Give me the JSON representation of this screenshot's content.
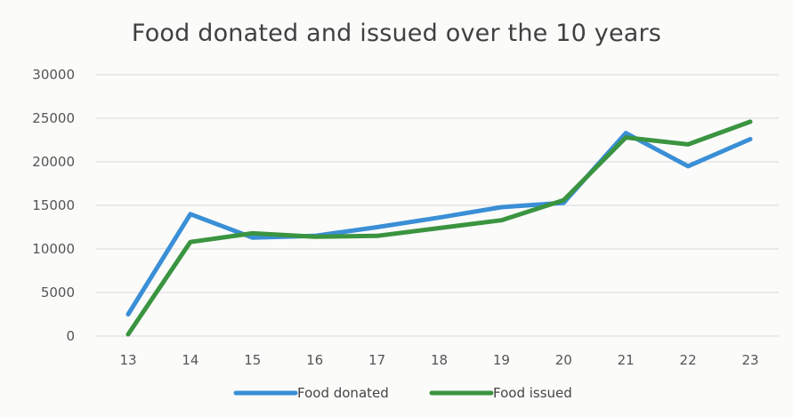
{
  "chart_data": {
    "type": "line",
    "title": "Food donated and issued over the 10 years",
    "xlabel": "",
    "ylabel": "",
    "categories": [
      "13",
      "14",
      "15",
      "16",
      "17",
      "18",
      "19",
      "20",
      "21",
      "22",
      "23"
    ],
    "ylim": [
      0,
      30000
    ],
    "yticks": [
      0,
      5000,
      10000,
      15000,
      20000,
      25000,
      30000
    ],
    "grid": true,
    "legend_position": "bottom",
    "series": [
      {
        "name": "Food donated",
        "color": "#3a8fd6",
        "values": [
          2500,
          14000,
          11300,
          11500,
          12500,
          13600,
          14800,
          15300,
          23300,
          19500,
          22600
        ]
      },
      {
        "name": "Food issued",
        "color": "#3a9440",
        "values": [
          200,
          10800,
          11800,
          11400,
          11500,
          12400,
          13300,
          15600,
          22800,
          22000,
          24600
        ]
      }
    ]
  }
}
